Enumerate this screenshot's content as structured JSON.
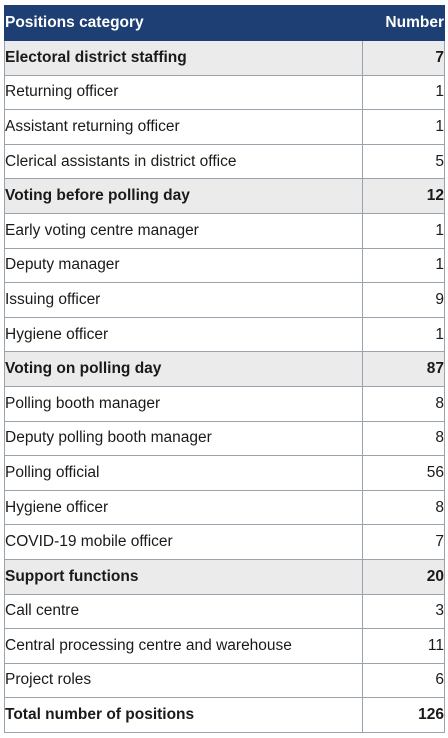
{
  "header": {
    "category": "Positions category",
    "number": "Number"
  },
  "rows": [
    {
      "type": "cat",
      "label": "Electoral district staffing",
      "value": "7"
    },
    {
      "type": "item",
      "label": "Returning officer",
      "value": "1"
    },
    {
      "type": "item",
      "label": "Assistant returning officer",
      "value": "1"
    },
    {
      "type": "item",
      "label": "Clerical assistants in district office",
      "value": "5"
    },
    {
      "type": "cat",
      "label": "Voting before polling day",
      "value": "12"
    },
    {
      "type": "item",
      "label": "Early voting centre manager",
      "value": "1"
    },
    {
      "type": "item",
      "label": "Deputy manager",
      "value": "1"
    },
    {
      "type": "item",
      "label": "Issuing officer",
      "value": "9"
    },
    {
      "type": "item",
      "label": "Hygiene officer",
      "value": "1"
    },
    {
      "type": "cat",
      "label": "Voting on polling day",
      "value": "87"
    },
    {
      "type": "item",
      "label": "Polling booth manager",
      "value": "8"
    },
    {
      "type": "item",
      "label": "Deputy polling booth manager",
      "value": "8"
    },
    {
      "type": "item",
      "label": "Polling official",
      "value": "56"
    },
    {
      "type": "item",
      "label": "Hygiene officer",
      "value": "8"
    },
    {
      "type": "item",
      "label": "COVID-19 mobile officer",
      "value": "7"
    },
    {
      "type": "cat",
      "label": "Support functions",
      "value": "20"
    },
    {
      "type": "item",
      "label": "Call centre",
      "value": "3"
    },
    {
      "type": "item",
      "label": "Central processing centre and warehouse",
      "value": "11"
    },
    {
      "type": "item",
      "label": "Project roles",
      "value": "6"
    }
  ],
  "total": {
    "label": "Total number of positions",
    "value": "126"
  },
  "colors": {
    "header_bg": "#1d3f73",
    "category_bg": "#ebebeb",
    "border": "#9aa3ad"
  }
}
